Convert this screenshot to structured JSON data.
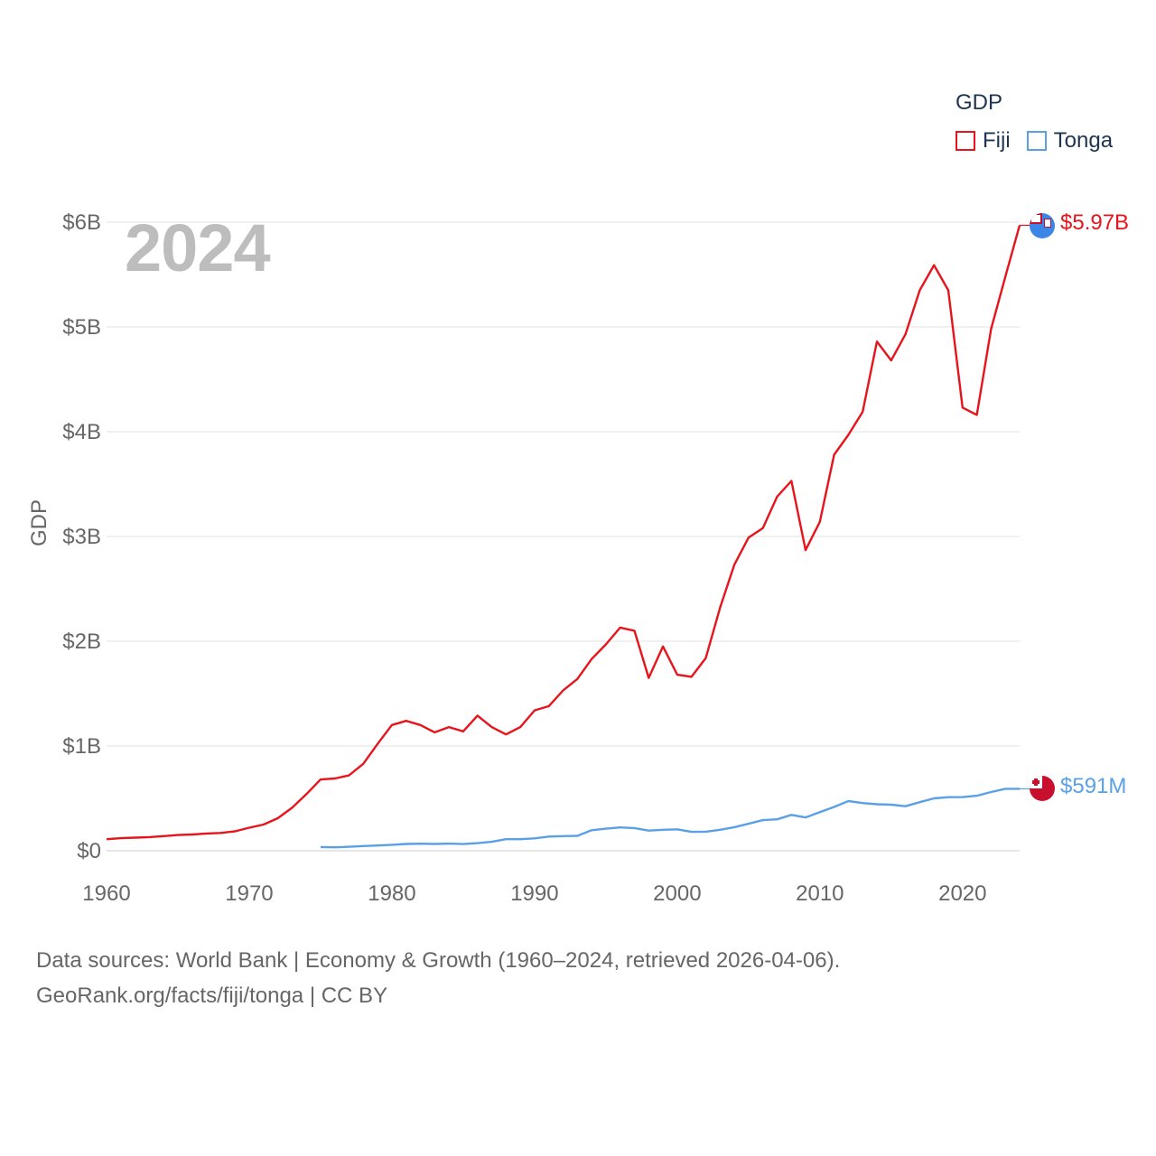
{
  "legend": {
    "title": "GDP",
    "items": [
      {
        "label": "Fiji",
        "color": "#e8141c"
      },
      {
        "label": "Tonga",
        "color": "#5aa0e6"
      }
    ]
  },
  "year_label": "2024",
  "footer": {
    "line1": "Data sources: World Bank | Economy & Growth (1960–2024, retrieved 2026-04-06).",
    "line2": "GeoRank.org/facts/fiji/tonga | CC BY"
  },
  "end_labels": {
    "fiji": "$5.97B",
    "tonga": "$591M"
  },
  "chart_data": {
    "type": "line",
    "title": "",
    "xlabel": "",
    "ylabel": "GDP",
    "xlim": [
      1960,
      2024
    ],
    "ylim": [
      0,
      6
    ],
    "y_unit": "billions USD",
    "x_ticks": [
      1960,
      1970,
      1980,
      1990,
      2000,
      2010,
      2020
    ],
    "y_ticks": [
      {
        "value": 0,
        "label": "$0"
      },
      {
        "value": 1,
        "label": "$1B"
      },
      {
        "value": 2,
        "label": "$2B"
      },
      {
        "value": 3,
        "label": "$3B"
      },
      {
        "value": 4,
        "label": "$4B"
      },
      {
        "value": 5,
        "label": "$5B"
      },
      {
        "value": 6,
        "label": "$6B"
      }
    ],
    "grid": true,
    "series": [
      {
        "name": "Fiji",
        "color": "#e8141c",
        "x": [
          1960,
          1961,
          1962,
          1963,
          1964,
          1965,
          1966,
          1967,
          1968,
          1969,
          1970,
          1971,
          1972,
          1973,
          1974,
          1975,
          1976,
          1977,
          1978,
          1979,
          1980,
          1981,
          1982,
          1983,
          1984,
          1985,
          1986,
          1987,
          1988,
          1989,
          1990,
          1991,
          1992,
          1993,
          1994,
          1995,
          1996,
          1997,
          1998,
          1999,
          2000,
          2001,
          2002,
          2003,
          2004,
          2005,
          2006,
          2007,
          2008,
          2009,
          2010,
          2011,
          2012,
          2013,
          2014,
          2015,
          2016,
          2017,
          2018,
          2019,
          2020,
          2021,
          2022,
          2023,
          2024
        ],
        "values": [
          0.11,
          0.12,
          0.125,
          0.13,
          0.14,
          0.15,
          0.155,
          0.165,
          0.17,
          0.185,
          0.22,
          0.25,
          0.31,
          0.41,
          0.54,
          0.68,
          0.69,
          0.72,
          0.83,
          1.02,
          1.2,
          1.24,
          1.2,
          1.13,
          1.18,
          1.14,
          1.29,
          1.18,
          1.11,
          1.18,
          1.34,
          1.38,
          1.53,
          1.64,
          1.83,
          1.97,
          2.13,
          2.1,
          1.65,
          1.95,
          1.68,
          1.66,
          1.84,
          2.32,
          2.73,
          2.99,
          3.08,
          3.38,
          3.53,
          2.87,
          3.14,
          3.78,
          3.97,
          4.19,
          4.86,
          4.68,
          4.93,
          5.35,
          5.59,
          5.35,
          4.23,
          4.16,
          4.98,
          5.48,
          5.97
        ]
      },
      {
        "name": "Tonga",
        "color": "#5aa0e6",
        "x": [
          1975,
          1976,
          1977,
          1978,
          1979,
          1980,
          1981,
          1982,
          1983,
          1984,
          1985,
          1986,
          1987,
          1988,
          1989,
          1990,
          1991,
          1992,
          1993,
          1994,
          1995,
          1996,
          1997,
          1998,
          1999,
          2000,
          2001,
          2002,
          2003,
          2004,
          2005,
          2006,
          2007,
          2008,
          2009,
          2010,
          2011,
          2012,
          2013,
          2014,
          2015,
          2016,
          2017,
          2018,
          2019,
          2020,
          2021,
          2022,
          2023,
          2024
        ],
        "values": [
          0.035,
          0.033,
          0.038,
          0.045,
          0.05,
          0.057,
          0.065,
          0.067,
          0.065,
          0.068,
          0.064,
          0.072,
          0.085,
          0.11,
          0.11,
          0.118,
          0.135,
          0.14,
          0.142,
          0.196,
          0.21,
          0.222,
          0.216,
          0.192,
          0.2,
          0.204,
          0.18,
          0.182,
          0.2,
          0.225,
          0.258,
          0.292,
          0.3,
          0.342,
          0.318,
          0.369,
          0.418,
          0.474,
          0.455,
          0.444,
          0.44,
          0.425,
          0.464,
          0.5,
          0.511,
          0.512,
          0.525,
          0.56,
          0.591,
          0.591
        ]
      }
    ]
  }
}
